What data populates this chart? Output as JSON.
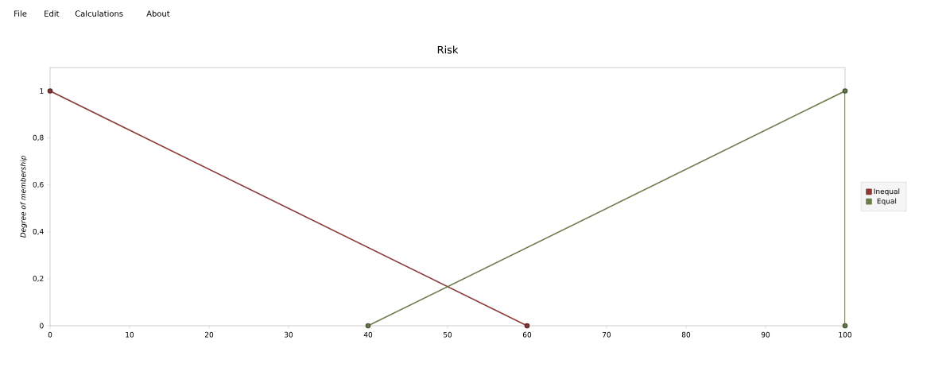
{
  "chart_data": {
    "type": "line",
    "title": "Risk",
    "ylabel": "Degree of membership",
    "annotations": [
      "File",
      "Edit",
      "Calculations",
      "About"
    ],
    "series": [
      {
        "name": "Inequal",
        "color": "#8b3a3a",
        "x": [
          0,
          60
        ],
        "values": [
          1,
          0
        ]
      },
      {
        "name": "Equal",
        "color": "#6b7d4a",
        "x": [
          40,
          100,
          100
        ],
        "values": [
          0,
          1,
          0
        ]
      }
    ],
    "xlim": [
      0,
      100
    ],
    "xticks": [
      0,
      10,
      20,
      30,
      40,
      50,
      60,
      70,
      80,
      90,
      100
    ],
    "ylim": [
      0,
      1.1
    ],
    "yticks": [
      0,
      {
        "value": 0.2,
        "label": "0,2"
      },
      {
        "value": 0.4,
        "label": "0,4"
      },
      {
        "value": 0.6,
        "label": "0,6"
      },
      {
        "value": 0.8,
        "label": "0,8"
      },
      1
    ],
    "grid": false,
    "legend": "right",
    "marker": "circle",
    "line_style": "solid"
  }
}
